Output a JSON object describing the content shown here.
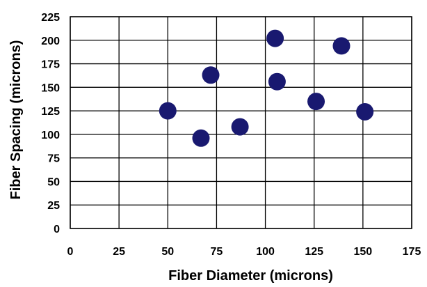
{
  "chart_data": {
    "type": "scatter",
    "title": "",
    "xlabel": "Fiber Diameter (microns)",
    "ylabel": "Fiber Spacing (microns)",
    "xlim": [
      0,
      175
    ],
    "ylim": [
      0,
      225
    ],
    "x_ticks": [
      "0",
      "25",
      "50",
      "75",
      "100",
      "125",
      "150",
      "175"
    ],
    "y_ticks": [
      "0",
      "25",
      "50",
      "75",
      "100",
      "125",
      "150",
      "175",
      "200",
      "225"
    ],
    "grid": true,
    "legend": false,
    "marker_color": "#191970",
    "series": [
      {
        "points": [
          {
            "x": 50,
            "y": 125
          },
          {
            "x": 67,
            "y": 96
          },
          {
            "x": 72,
            "y": 163
          },
          {
            "x": 87,
            "y": 108
          },
          {
            "x": 105,
            "y": 202
          },
          {
            "x": 106,
            "y": 156
          },
          {
            "x": 126,
            "y": 135
          },
          {
            "x": 139,
            "y": 194
          },
          {
            "x": 151,
            "y": 124
          }
        ]
      }
    ]
  }
}
